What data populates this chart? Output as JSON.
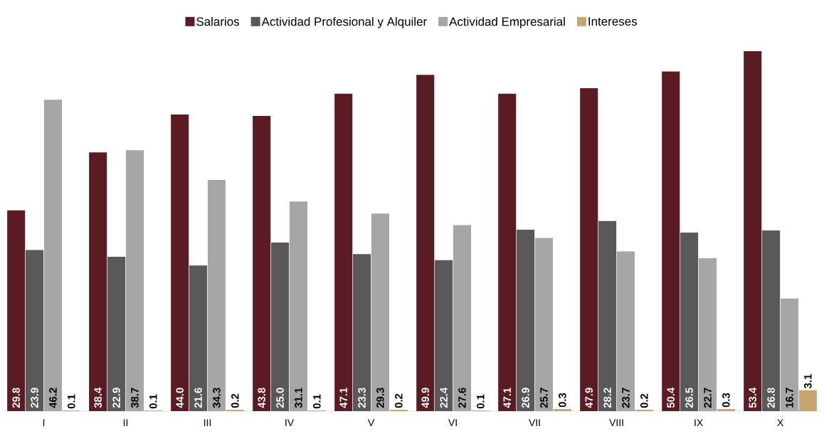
{
  "chart_data": {
    "type": "bar",
    "categories": [
      "I",
      "II",
      "III",
      "IV",
      "V",
      "VI",
      "VII",
      "VIII",
      "IX",
      "X"
    ],
    "series": [
      {
        "name": "Salarios",
        "color": "#5a1c22",
        "values": [
          29.8,
          38.4,
          44.0,
          43.8,
          47.1,
          49.9,
          47.1,
          47.9,
          50.4,
          53.4
        ],
        "value_labels": [
          "29.8",
          "38.4",
          "44.0",
          "43.8",
          "47.1",
          "49.9",
          "47.1",
          "47.9",
          "50.4",
          "53.4"
        ]
      },
      {
        "name": "Actividad Profesional y Alquiler",
        "color": "#595959",
        "values": [
          23.9,
          22.9,
          21.6,
          25.0,
          23.3,
          22.4,
          26.9,
          28.2,
          26.5,
          26.8
        ],
        "value_labels": [
          "23.9",
          "22.9",
          "21.6",
          "25.0",
          "23.3",
          "22.4",
          "26.9",
          "28.2",
          "26.5",
          "26.8"
        ]
      },
      {
        "name": "Actividad Empresarial",
        "color": "#a6a6a6",
        "values": [
          46.2,
          38.7,
          34.3,
          31.1,
          29.3,
          27.6,
          25.7,
          23.7,
          22.7,
          16.7
        ],
        "value_labels": [
          "46.2",
          "38.7",
          "34.3",
          "31.1",
          "29.3",
          "27.6",
          "25.7",
          "23.7",
          "22.7",
          "16.7"
        ]
      },
      {
        "name": "Intereses",
        "color": "#c8a46e",
        "values": [
          0.1,
          0.1,
          0.2,
          0.1,
          0.2,
          0.1,
          0.3,
          0.2,
          0.3,
          3.1
        ],
        "value_labels": [
          "0.1",
          "0.1",
          "0.2",
          "0.1",
          "0.2",
          "0.1",
          "0.3",
          "0.2",
          "0.3",
          "3.1"
        ]
      }
    ],
    "legend": "top"
  }
}
